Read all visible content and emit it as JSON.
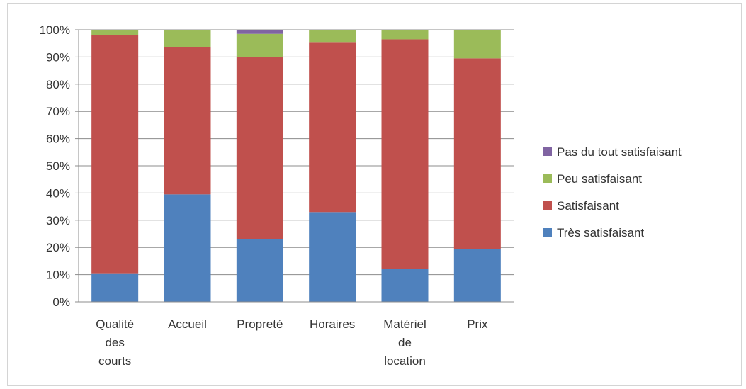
{
  "chart_data": {
    "type": "bar",
    "stacked": true,
    "percent_stacked": true,
    "categories": [
      [
        "Qualité",
        "des",
        "courts"
      ],
      [
        "Accueil"
      ],
      [
        "Propreté"
      ],
      [
        "Horaires"
      ],
      [
        "Matériel",
        "de",
        "location"
      ],
      [
        "Prix"
      ]
    ],
    "series": [
      {
        "name": "Très satisfaisant",
        "color": "#4F81BD",
        "values": [
          10.5,
          39.5,
          23,
          33,
          12,
          19.5
        ]
      },
      {
        "name": "Satisfaisant",
        "color": "#C0504D",
        "values": [
          87.5,
          54,
          67,
          62.5,
          84.5,
          70
        ]
      },
      {
        "name": "Peu satisfaisant",
        "color": "#9BBB59",
        "values": [
          2,
          6.5,
          8.5,
          4.5,
          3.5,
          10.5
        ]
      },
      {
        "name": "Pas du tout satisfaisant",
        "color": "#8064A2",
        "values": [
          0,
          0,
          1.5,
          0,
          0,
          0
        ]
      }
    ],
    "y_ticks": [
      "0%",
      "10%",
      "20%",
      "30%",
      "40%",
      "50%",
      "60%",
      "70%",
      "80%",
      "90%",
      "100%"
    ],
    "ylim": [
      0,
      100
    ],
    "grid": true,
    "legend_position": "right",
    "legend_order": [
      "Pas du tout satisfaisant",
      "Peu satisfaisant",
      "Satisfaisant",
      "Très satisfaisant"
    ],
    "title": "",
    "xlabel": "",
    "ylabel": ""
  }
}
